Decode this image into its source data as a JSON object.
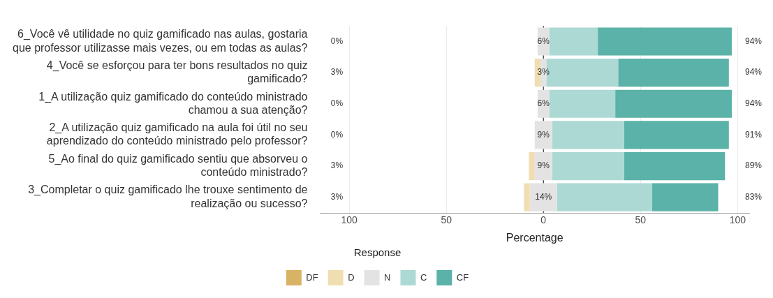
{
  "chart_data": {
    "type": "bar",
    "orientation": "horizontal",
    "xlabel": "Percentage",
    "legend_title": "Response",
    "legend": "bottom",
    "grid": "x",
    "categories": [
      "6_Você vê utilidade no quiz gamificado nas aulas, gostaria que professor utilizasse mais vezes, ou em todas as aulas?",
      "4_Você se esforçou para ter bons resultados no quiz gamificado?",
      "1_A utilização quiz gamificado do conteúdo ministrado chamou a sua atenção?",
      "2_A utilização quiz gamificado na aula foi útil no seu aprendizado do conteúdo ministrado pelo professor?",
      "5_Ao final do quiz gamificado sentiu que absorveu o conteúdo ministrado?",
      "3_Completar o quiz gamificado lhe trouxe sentimento de realização ou sucesso?"
    ],
    "xlim": [
      -115,
      106
    ],
    "xticks": [
      {
        "value": -100,
        "label": "100"
      },
      {
        "value": -50,
        "label": "50"
      },
      0,
      50,
      100
    ],
    "series": [
      {
        "name": "DF",
        "color": "#d9b365",
        "values": [
          0,
          0,
          0,
          0,
          0,
          0
        ]
      },
      {
        "name": "D",
        "color": "#f0deb2",
        "values": [
          0,
          3,
          0,
          0,
          3,
          3
        ],
        "base": [
          null,
          -4.5,
          null,
          null,
          -7.5,
          -10
        ]
      },
      {
        "name": "N",
        "color": "#e3e3e3",
        "values": [
          6,
          3,
          6,
          9,
          9,
          14
        ],
        "base": [
          -3,
          -1.5,
          -3,
          -4.5,
          -4.5,
          -7
        ],
        "value_labels": [
          "6%",
          "3%",
          "6%",
          "9%",
          "9%",
          "14%"
        ]
      },
      {
        "name": "C",
        "color": "#acd9d4",
        "values": [
          25,
          37,
          34,
          37,
          37,
          49
        ],
        "base": [
          3,
          1.5,
          3,
          4.5,
          4.5,
          7
        ]
      },
      {
        "name": "CF",
        "color": "#5ab2a8",
        "values": [
          69,
          57,
          60,
          54,
          52,
          34
        ],
        "base": [
          28,
          38.5,
          37,
          41.5,
          41.5,
          56
        ]
      }
    ],
    "ref_lines": [
      {
        "axis": "x",
        "value": 0,
        "color": "#333333"
      }
    ],
    "annotations": [
      "0%",
      "3%",
      "0%",
      "0%",
      "3%",
      "3%",
      "94%",
      "94%",
      "94%",
      "91%",
      "89%",
      "83%"
    ]
  }
}
